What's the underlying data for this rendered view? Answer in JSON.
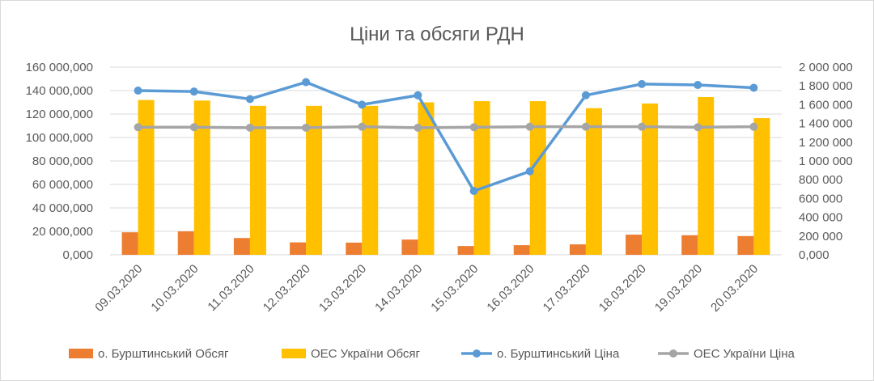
{
  "chart_data": {
    "type": "bar",
    "title": "Ціни та обсяги РДН",
    "categories": [
      "09.03.2020",
      "10.03.2020",
      "11.03.2020",
      "12.03.2020",
      "13.03.2020",
      "14.03.2020",
      "15.03.2020",
      "16.03.2020",
      "17.03.2020",
      "18.03.2020",
      "19.03.2020",
      "20.03.2020"
    ],
    "y_left": {
      "ylim": [
        0,
        160000000
      ],
      "tick_values": [
        0,
        20000000,
        40000000,
        60000000,
        80000000,
        100000000,
        120000000,
        140000000,
        160000000
      ],
      "tick_labels": [
        "0,000",
        "20 000,000",
        "40 000,000",
        "60 000,000",
        "80 000,000",
        "100 000,000",
        "120 000,000",
        "140 000,000",
        "160 000,000"
      ]
    },
    "y_right": {
      "ylim": [
        0,
        2000000
      ],
      "tick_values": [
        0,
        200000,
        400000,
        600000,
        800000,
        1000000,
        1200000,
        1400000,
        1600000,
        1800000,
        2000000
      ],
      "tick_labels": [
        "0,000",
        "200 000",
        "400 000",
        "600 000",
        "800 000",
        "1 000 000",
        "1 200 000",
        "1 400 000",
        "1 600 000",
        "1 800 000",
        "2 000 000"
      ]
    },
    "grid": true,
    "legend_position": "bottom",
    "series": [
      {
        "name": "о. Бурштинський Обсяг",
        "type": "bar",
        "axis": "left",
        "color": "#ED7D31",
        "values": [
          19200000,
          20000000,
          14300000,
          10600000,
          10400000,
          13000000,
          7500000,
          8200000,
          8900000,
          17200000,
          16700000,
          16000000
        ]
      },
      {
        "name": "ОЕС України Обсяг",
        "type": "bar",
        "axis": "left",
        "color": "#FFC000",
        "values": [
          132000000,
          131500000,
          127000000,
          127000000,
          127000000,
          130000000,
          131000000,
          131000000,
          125000000,
          129000000,
          134500000,
          116500000
        ]
      },
      {
        "name": "о. Бурштинський Ціна",
        "type": "line",
        "axis": "right",
        "color": "#5B9BD5",
        "values": [
          1750000,
          1740000,
          1660000,
          1840000,
          1600000,
          1700000,
          680000,
          890000,
          1700000,
          1820000,
          1810000,
          1780000
        ]
      },
      {
        "name": "ОЕС України Ціна",
        "type": "line",
        "axis": "right",
        "color": "#A5A5A5",
        "values": [
          1360000,
          1360000,
          1355000,
          1355000,
          1365000,
          1355000,
          1360000,
          1365000,
          1365000,
          1365000,
          1360000,
          1365000
        ]
      }
    ]
  }
}
